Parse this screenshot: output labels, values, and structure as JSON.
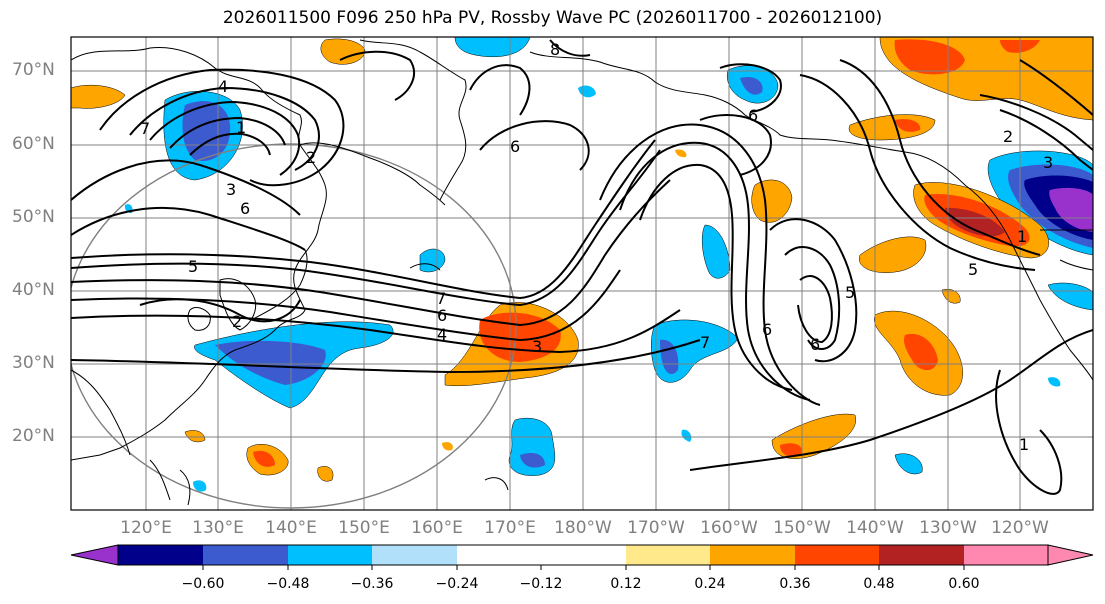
{
  "title": "2026011500 F096 250 hPa PV, Rossby Wave PC (2026011700 - 2026012100)",
  "latitude_labels": [
    "70°N",
    "60°N",
    "50°N",
    "40°N",
    "30°N",
    "20°N"
  ],
  "longitude_labels": [
    "120°E",
    "130°E",
    "140°E",
    "150°E",
    "160°E",
    "170°E",
    "180°W",
    "170°W",
    "160°W",
    "150°W",
    "140°W",
    "130°W",
    "120°W"
  ],
  "contour_labels": [
    "4",
    "1",
    "2",
    "3",
    "6",
    "7",
    "5",
    "6",
    "7",
    "6",
    "4",
    "3",
    "2",
    "8",
    "6",
    "6",
    "7",
    "5",
    "6",
    "3",
    "2",
    "1",
    "1",
    "5"
  ],
  "colorbar": {
    "ticks": [
      "−0.60",
      "−0.48",
      "−0.36",
      "−0.24",
      "−0.12",
      "0.12",
      "0.24",
      "0.36",
      "0.48",
      "0.60"
    ],
    "colors": [
      "#9932cc",
      "#00008b",
      "#3b5bcf",
      "#00bfff",
      "#b0e0fa",
      "#ffffff",
      "#ffe98a",
      "#ffa500",
      "#ff4500",
      "#b22222",
      "#ff88b0"
    ]
  }
}
